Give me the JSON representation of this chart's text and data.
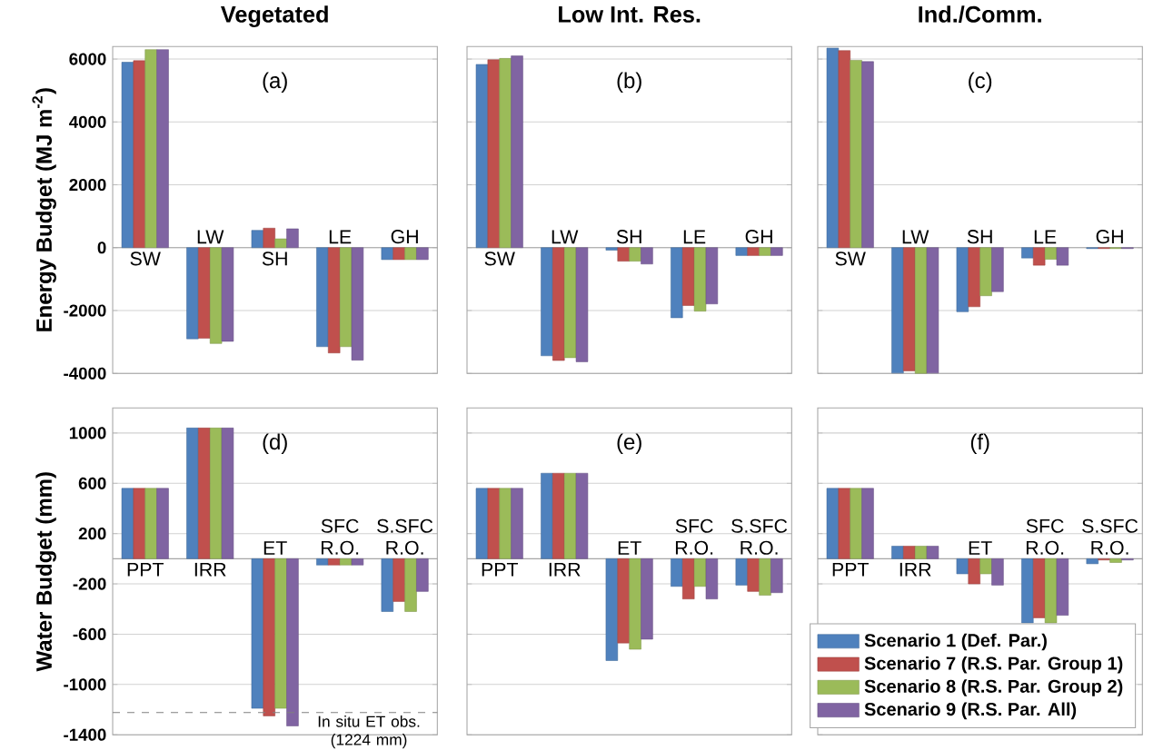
{
  "chart_data": [
    {
      "type": "bar",
      "title": "Vegetated",
      "ylabel": "Energy Budget (MJ m$^{-2}$)",
      "categories": [
        "SW",
        "LW",
        "SH",
        "LE",
        "GH"
      ],
      "ylim": [
        -4000,
        6400
      ],
      "yticks": [
        -4000,
        -2000,
        0,
        2000,
        4000,
        6000
      ],
      "grid": "y",
      "annotations": [
        "(a)"
      ],
      "series": [
        {
          "color": "#4f81bd",
          "values": [
            5900,
            -2900,
            550,
            -3150,
            -380
          ]
        },
        {
          "color": "#c0504d",
          "values": [
            5950,
            -2880,
            620,
            -3350,
            -380
          ]
        },
        {
          "color": "#9bbb59",
          "values": [
            6300,
            -3050,
            280,
            -3150,
            -380
          ]
        },
        {
          "color": "#8064a2",
          "values": [
            6300,
            -2980,
            600,
            -3580,
            -380
          ]
        }
      ]
    },
    {
      "type": "bar",
      "title": "Low Int. Res.",
      "categories": [
        "SW",
        "LW",
        "SH",
        "LE",
        "GH"
      ],
      "ylim": [
        -4000,
        6400
      ],
      "yticks": [
        -4000,
        -2000,
        0,
        2000,
        4000,
        6000
      ],
      "grid": "y",
      "annotations": [
        "(b)"
      ],
      "tick_labels": "x",
      "series": [
        {
          "color": "#4f81bd",
          "values": [
            5830,
            -3440,
            -80,
            -2230,
            -250
          ]
        },
        {
          "color": "#c0504d",
          "values": [
            5980,
            -3590,
            -430,
            -1840,
            -250
          ]
        },
        {
          "color": "#9bbb59",
          "values": [
            6020,
            -3500,
            -430,
            -2020,
            -250
          ]
        },
        {
          "color": "#8064a2",
          "values": [
            6100,
            -3630,
            -520,
            -1790,
            -250
          ]
        }
      ]
    },
    {
      "type": "bar",
      "title": "Ind./Comm.",
      "categories": [
        "SW",
        "LW",
        "SH",
        "LE",
        "GH"
      ],
      "ylim": [
        -4000,
        6400
      ],
      "yticks": [
        -4000,
        -2000,
        0,
        2000,
        4000,
        6000
      ],
      "grid": "y",
      "annotations": [
        "(c)"
      ],
      "tick_labels": "x",
      "series": [
        {
          "color": "#4f81bd",
          "values": [
            6350,
            -3990,
            -2040,
            -330,
            -30
          ]
        },
        {
          "color": "#c0504d",
          "values": [
            6270,
            -3920,
            -1880,
            -560,
            -30
          ]
        },
        {
          "color": "#9bbb59",
          "values": [
            5960,
            -4000,
            -1530,
            -370,
            -30
          ]
        },
        {
          "color": "#8064a2",
          "values": [
            5920,
            -3990,
            -1400,
            -560,
            -30
          ]
        }
      ]
    },
    {
      "type": "bar",
      "ylabel": "Water Budget (mm)",
      "categories": [
        "PPT",
        "IRR",
        "ET",
        "SFC R.O.",
        "S.SFC R.O."
      ],
      "ylim": [
        -1400,
        1200
      ],
      "yticks": [
        -1400,
        -1000,
        -600,
        -200,
        200,
        600,
        1000
      ],
      "grid": "y",
      "annotations": [
        "(d)"
      ],
      "ref_lines": [
        {
          "axis": "y",
          "value": -1224,
          "label": "In situ ET obs. (1224 mm)",
          "color": "#808080",
          "line_style": "dashed"
        }
      ],
      "series": [
        {
          "color": "#4f81bd",
          "values": [
            560,
            1040,
            -1190,
            -50,
            -420
          ]
        },
        {
          "color": "#c0504d",
          "values": [
            560,
            1040,
            -1250,
            -50,
            -340
          ]
        },
        {
          "color": "#9bbb59",
          "values": [
            560,
            1040,
            -1190,
            -50,
            -420
          ]
        },
        {
          "color": "#8064a2",
          "values": [
            560,
            1040,
            -1330,
            -50,
            -260
          ]
        }
      ]
    },
    {
      "type": "bar",
      "categories": [
        "PPT",
        "IRR",
        "ET",
        "SFC R.O.",
        "S.SFC R.O."
      ],
      "ylim": [
        -1400,
        1200
      ],
      "yticks": [
        -1400,
        -1000,
        -600,
        -200,
        200,
        600,
        1000
      ],
      "grid": "y",
      "annotations": [
        "(e)"
      ],
      "tick_labels": "x",
      "series": [
        {
          "color": "#4f81bd",
          "values": [
            560,
            680,
            -810,
            -220,
            -210
          ]
        },
        {
          "color": "#c0504d",
          "values": [
            560,
            680,
            -670,
            -320,
            -260
          ]
        },
        {
          "color": "#9bbb59",
          "values": [
            560,
            680,
            -720,
            -220,
            -290
          ]
        },
        {
          "color": "#8064a2",
          "values": [
            560,
            680,
            -640,
            -320,
            -270
          ]
        }
      ]
    },
    {
      "type": "bar",
      "categories": [
        "PPT",
        "IRR",
        "ET",
        "SFC R.O.",
        "S.SFC R.O."
      ],
      "ylim": [
        -1400,
        1200
      ],
      "yticks": [
        -1400,
        -1000,
        -600,
        -200,
        200,
        600,
        1000
      ],
      "grid": "y",
      "annotations": [
        "(f)"
      ],
      "tick_labels": "x",
      "legend": "bottom right",
      "series": [
        {
          "name": "Scenario 1 (Def. Par.)",
          "color": "#4f81bd",
          "values": [
            560,
            100,
            -120,
            -510,
            -40
          ]
        },
        {
          "name": "Scenario 7 (R.S. Par. Group 1)",
          "color": "#c0504d",
          "values": [
            560,
            100,
            -200,
            -470,
            -10
          ]
        },
        {
          "name": "Scenario 8 (R.S. Par. Group 2)",
          "color": "#9bbb59",
          "values": [
            560,
            100,
            -120,
            -510,
            -30
          ]
        },
        {
          "name": "Scenario 9 (R.S. Par. All)",
          "color": "#8064a2",
          "values": [
            560,
            100,
            -210,
            -450,
            -10
          ]
        }
      ]
    }
  ]
}
